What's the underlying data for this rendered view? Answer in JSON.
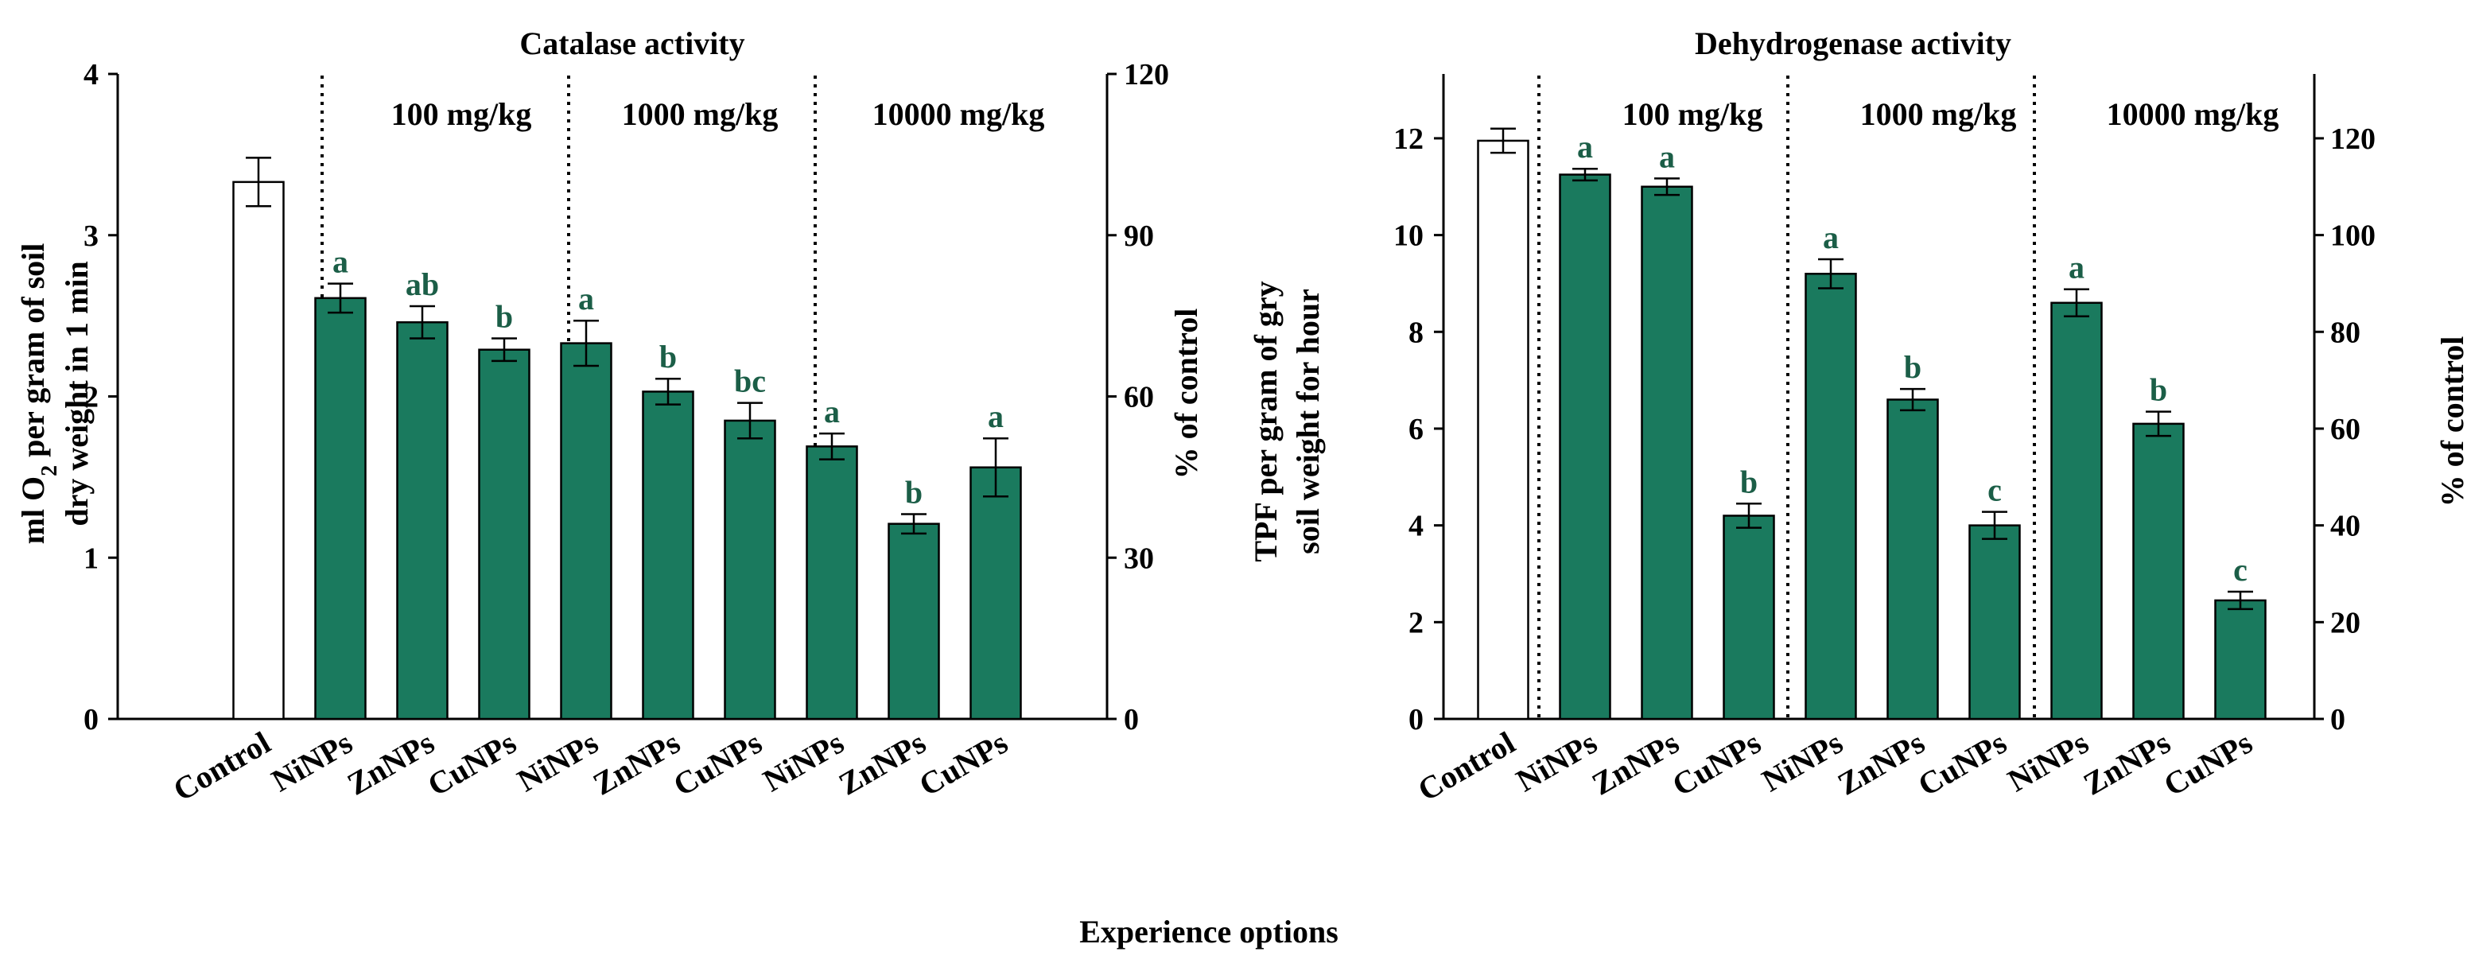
{
  "figure": {
    "xlabel": "Experience options",
    "colors": {
      "treatment": "#1a7a5e",
      "control": "#ffffff",
      "significance": "#1b5e47",
      "axis": "#000000"
    }
  },
  "chart_data": [
    {
      "type": "bar",
      "title": "Catalase activity",
      "categories": [
        "Control",
        "NiNPs",
        "ZnNPs",
        "CuNPs",
        "NiNPs",
        "ZnNPs",
        "CuNPs",
        "NiNPs",
        "ZnNPs",
        "CuNPs"
      ],
      "groups": [
        "100 mg/kg",
        "1000 mg/kg",
        "10000 mg/kg"
      ],
      "values": [
        3.33,
        2.61,
        2.46,
        2.29,
        2.33,
        2.03,
        1.85,
        1.69,
        1.21,
        1.56
      ],
      "errors": [
        0.15,
        0.09,
        0.1,
        0.07,
        0.14,
        0.08,
        0.11,
        0.08,
        0.06,
        0.18
      ],
      "significance": [
        "",
        "a",
        "ab",
        "b",
        "a",
        "b",
        "bc",
        "a",
        "b",
        "a"
      ],
      "ylabel_line1": "ml O",
      "ylabel_sub": "2",
      "ylabel_line1_rest": " per gram of soil",
      "ylabel_line2": "dry weight in 1 min",
      "ylim": [
        0,
        4
      ],
      "yticks": [
        0,
        1,
        2,
        3,
        4
      ],
      "y2label": "% of control",
      "y2lim": [
        0,
        120
      ],
      "y2ticks": [
        0,
        30,
        60,
        90,
        120
      ]
    },
    {
      "type": "bar",
      "title": "Dehydrogenase activity",
      "categories": [
        "Control",
        "NiNPs",
        "ZnNPs",
        "CuNPs",
        "NiNPs",
        "ZnNPs",
        "CuNPs",
        "NiNPs",
        "ZnNPs",
        "CuNPs"
      ],
      "groups": [
        "100 mg/kg",
        "1000 mg/kg",
        "10000 mg/kg"
      ],
      "values": [
        11.95,
        11.25,
        11.0,
        4.2,
        9.2,
        6.6,
        4.0,
        8.6,
        6.1,
        2.45
      ],
      "errors": [
        0.25,
        0.12,
        0.17,
        0.25,
        0.3,
        0.22,
        0.28,
        0.28,
        0.25,
        0.18
      ],
      "significance": [
        "",
        "a",
        "a",
        "b",
        "a",
        "b",
        "c",
        "a",
        "b",
        "c"
      ],
      "ylabel_line1": "TPF per gram of gry",
      "ylabel_line2": "soil weight for hour",
      "ylim": [
        0,
        13.33
      ],
      "yticks": [
        0,
        2,
        4,
        6,
        8,
        10,
        12
      ],
      "y2label": "% of control",
      "y2lim": [
        0,
        133.3
      ],
      "y2ticks": [
        0,
        20,
        40,
        60,
        80,
        100,
        120
      ]
    }
  ]
}
